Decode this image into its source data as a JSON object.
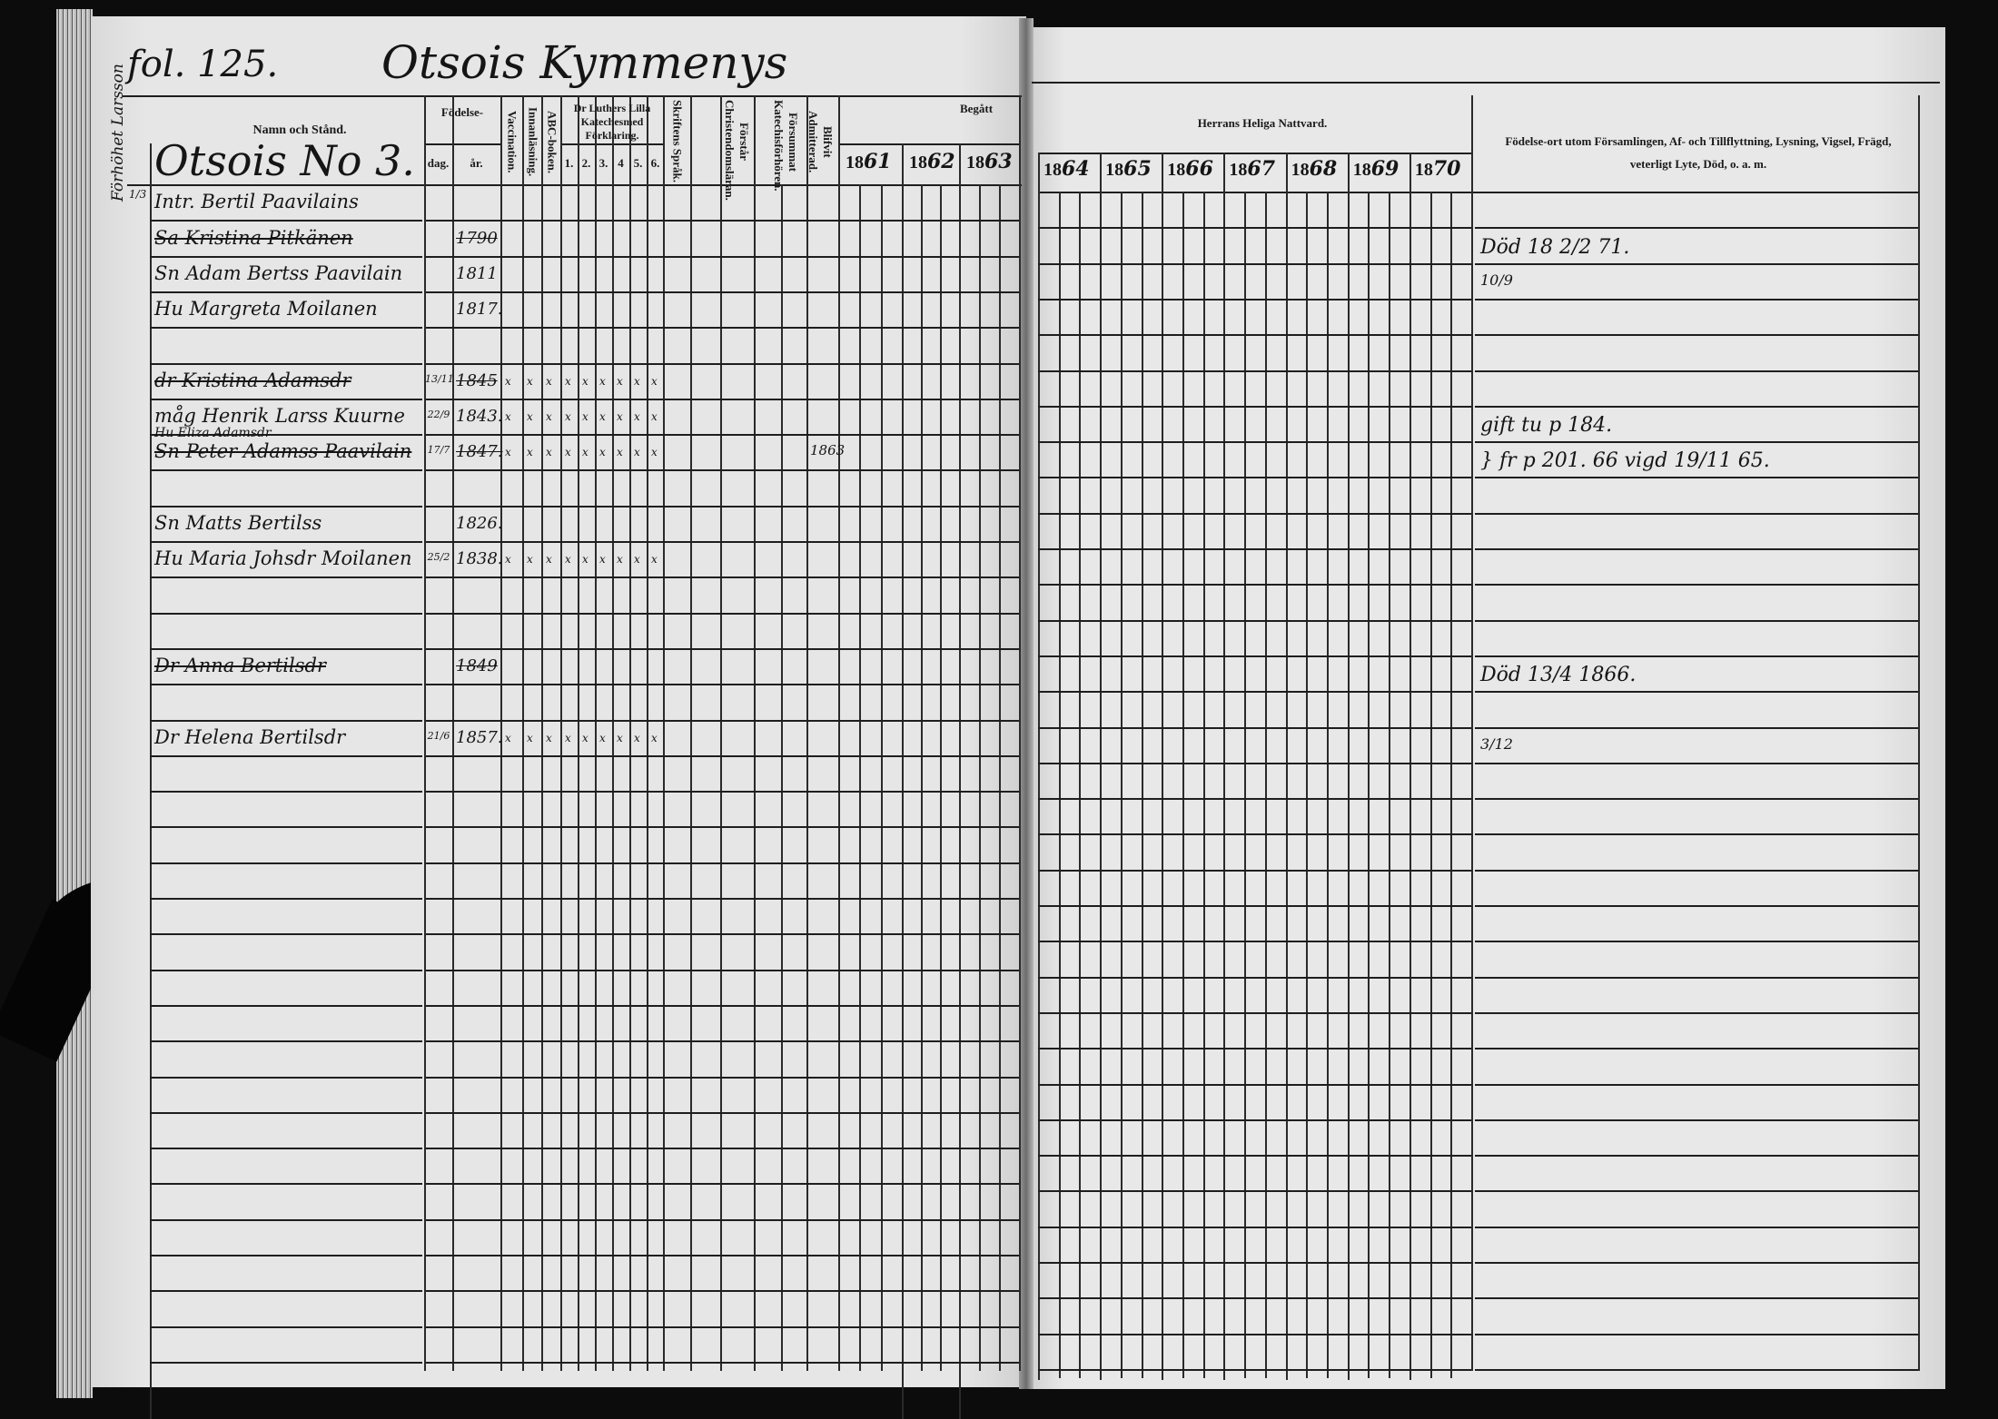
{
  "left_page": {
    "folio": "fol. 125.",
    "village_title": "Otsois Kymmenys",
    "margin_note": "Förhöhet Larsson",
    "household": "Otsois No 3.",
    "headers": {
      "name": "Namn och Stånd.",
      "birth": "Födelse-",
      "birth_day": "dag.",
      "birth_year": "år.",
      "vaccination": "Vaccination.",
      "reading": "Innanläsning.",
      "abc": "ABC-boken.",
      "catechism": "Dr Luthers Lilla Katechesmed Förklaring.",
      "catechism_parts": [
        "1.",
        "2.",
        "3.",
        "4",
        "5.",
        "6."
      ],
      "scripture": "Skriftens Språk.",
      "understanding": "Förstår Christendomsläran.",
      "missed": "Försummat Katechisförhören.",
      "admitted": "Blifvit Admitterad.",
      "begatt": "Begått",
      "years_left": [
        {
          "pre": "18",
          "hand": "61"
        },
        {
          "pre": "18",
          "hand": "62"
        },
        {
          "pre": "18",
          "hand": "63"
        }
      ]
    },
    "rows": [
      {
        "row": 0,
        "frac": "1/3",
        "name": "Intr. Bertil Paavilains",
        "struck": false,
        "day": "",
        "year": ""
      },
      {
        "row": 1,
        "name": "Sa Kristina Pitkänen",
        "struck": true,
        "day": "",
        "year": "1790"
      },
      {
        "row": 2,
        "name": "Sn Adam Bertss Paavilain",
        "struck": false,
        "day": "",
        "year": "1811"
      },
      {
        "row": 3,
        "name": "Hu Margreta Moilanen",
        "struck": false,
        "day": "",
        "year": "1817."
      },
      {
        "row": 5,
        "name": "dr Kristina Adamsdr",
        "struck": true,
        "day": "13/11",
        "year": "1845"
      },
      {
        "row": 6,
        "name": "måg Henrik Larss Kuurne",
        "struck": false,
        "day": "22/9",
        "year": "1843."
      },
      {
        "row": 7,
        "name": "Sn Peter Adamss Paavilain",
        "struck": true,
        "above": "Hu Eliza Adamsdr",
        "day": "17/7",
        "year": "1847.",
        "admitted": "1863"
      },
      {
        "row": 9,
        "name": "Sn Matts Bertilss",
        "struck": false,
        "day": "",
        "year": "1826."
      },
      {
        "row": 10,
        "name": "Hu Maria Johsdr Moilanen",
        "struck": false,
        "day": "25/2",
        "year": "1838."
      },
      {
        "row": 13,
        "name": "Dr Anna Bertilsdr",
        "struck": true,
        "day": "",
        "year": "1849"
      },
      {
        "row": 15,
        "name": "Dr Helena Bertilsdr",
        "struck": false,
        "day": "21/6",
        "year": "1857."
      }
    ]
  },
  "right_page": {
    "headers": {
      "communion": "Herrans Heliga Nattvard.",
      "years": [
        {
          "pre": "18",
          "hand": "64"
        },
        {
          "pre": "18",
          "hand": "65"
        },
        {
          "pre": "18",
          "hand": "66"
        },
        {
          "pre": "18",
          "hand": "67"
        },
        {
          "pre": "18",
          "hand": "68"
        },
        {
          "pre": "18",
          "hand": "69"
        },
        {
          "pre": "18",
          "hand": "70"
        }
      ],
      "notes": "Födelse-ort utom Församlingen, Af- och Tillflyttning, Lysning, Vigsel, Frägd, veterligt Lyte, Död, o. a. m."
    },
    "notes": [
      {
        "row": 1,
        "text": "Död 18 2/2 71."
      },
      {
        "row": 2,
        "text": "10/9"
      },
      {
        "row": 6,
        "text": "gift tu p 184."
      },
      {
        "row": 7,
        "text": "} fr p 201. 66 vigd 19/11 65."
      },
      {
        "row": 13,
        "text": "Död 13/4 1866."
      },
      {
        "row": 15,
        "text": "3/12"
      }
    ]
  }
}
